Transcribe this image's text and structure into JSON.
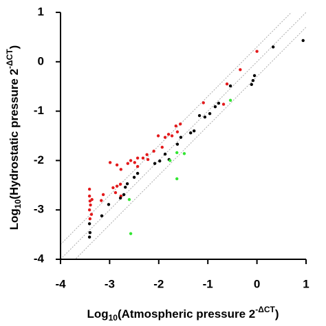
{
  "chart_data": {
    "type": "scatter",
    "x_label": [
      "Log",
      "10",
      "(Atmospheric pressure 2",
      "-ΔCT",
      ")"
    ],
    "y_label": [
      "Log",
      "10",
      "(Hydrostatic pressure 2",
      "-ΔCT",
      ")"
    ],
    "xlim": [
      -4,
      1
    ],
    "ylim": [
      -4,
      1
    ],
    "xticks": [
      -4,
      -3,
      -2,
      -1,
      0,
      1
    ],
    "yticks": [
      -4,
      -3,
      -2,
      -1,
      0,
      1
    ],
    "reference_lines": [
      {
        "slope": 1,
        "intercept": 0.3
      },
      {
        "slope": 1,
        "intercept": 0
      },
      {
        "slope": 1,
        "intercept": -0.3
      }
    ],
    "series": [
      {
        "color": "#e31a1c",
        "x": [
          0.0,
          -0.34,
          -0.61,
          -0.68,
          -1.09,
          -1.65,
          -1.56,
          -1.62,
          -1.73,
          -1.8,
          -1.87,
          -2.01,
          -1.93,
          -2.1,
          -2.24,
          -2.22,
          -2.32,
          -2.43,
          -2.49,
          -2.57,
          -2.63,
          -2.77,
          -2.85,
          -2.43,
          -2.99,
          -2.78,
          -2.85,
          -2.93,
          -2.77,
          -2.88,
          -3.13,
          -3.17,
          -3.41,
          -3.41,
          -3.4,
          -3.39,
          -3.41,
          -3.37,
          -3.4,
          -3.36
        ],
        "values": [
          0.21,
          -0.16,
          -0.45,
          -0.86,
          -0.83,
          -1.3,
          -1.26,
          -1.42,
          -1.5,
          -1.47,
          -1.53,
          -1.5,
          -1.73,
          -1.81,
          -1.88,
          -1.98,
          -1.95,
          -1.95,
          -2.04,
          -2.0,
          -2.06,
          -2.18,
          -2.09,
          -2.12,
          -2.04,
          -2.48,
          -2.52,
          -2.55,
          -2.72,
          -2.65,
          -2.69,
          -2.81,
          -2.58,
          -2.72,
          -2.82,
          -2.9,
          -3.0,
          -3.09,
          -3.18,
          -2.79
        ]
      },
      {
        "color": "#000000",
        "x": [
          0.94,
          0.33,
          -0.05,
          -0.08,
          -0.11,
          -0.54,
          -0.78,
          -0.85,
          -0.96,
          -1.06,
          -1.17,
          -1.28,
          -1.35,
          -1.55,
          -1.62,
          -1.79,
          -1.87,
          -1.98,
          -2.08,
          -2.43,
          -2.5,
          -2.64,
          -2.68,
          -2.71,
          -2.78,
          -3.02,
          -3.16,
          -3.41,
          -3.4,
          -3.41
        ],
        "values": [
          0.43,
          0.3,
          -0.28,
          -0.38,
          -0.46,
          -0.49,
          -0.84,
          -0.91,
          -1.05,
          -1.12,
          -1.09,
          -1.4,
          -1.44,
          -1.53,
          -1.67,
          -1.98,
          -1.87,
          -2.01,
          -2.06,
          -2.26,
          -2.34,
          -2.47,
          -2.54,
          -2.69,
          -2.76,
          -2.89,
          -3.12,
          -3.28,
          -3.46,
          -3.55
        ]
      },
      {
        "color": "#33e633",
        "x": [
          -0.54,
          -1.48,
          -1.63,
          -1.77,
          -1.63,
          -2.6,
          -2.57
        ],
        "values": [
          -0.78,
          -1.86,
          -1.84,
          -2.0,
          -2.37,
          -2.79,
          -3.48
        ]
      }
    ]
  }
}
